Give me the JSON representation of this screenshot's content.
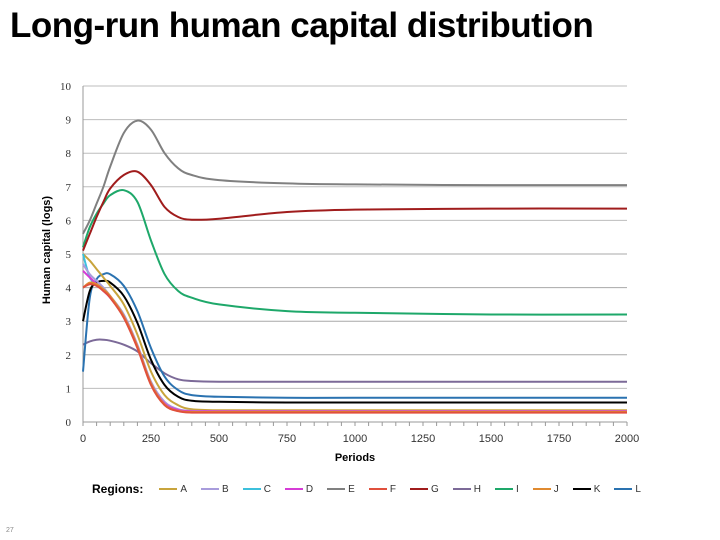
{
  "slide": {
    "title": "Long-run human capital distribution",
    "page_number": "27"
  },
  "legend": {
    "title": "Regions:",
    "items": [
      {
        "label": "A",
        "color": "#c8a43c"
      },
      {
        "label": "B",
        "color": "#a89cdc"
      },
      {
        "label": "C",
        "color": "#3cc0dc"
      },
      {
        "label": "D",
        "color": "#d63cd6"
      },
      {
        "label": "E",
        "color": "#808080"
      },
      {
        "label": "F",
        "color": "#e0503c"
      },
      {
        "label": "G",
        "color": "#a01c1c"
      },
      {
        "label": "H",
        "color": "#7c6a98"
      },
      {
        "label": "I",
        "color": "#1ea86a"
      },
      {
        "label": "J",
        "color": "#e08a30"
      },
      {
        "label": "K",
        "color": "#000000"
      },
      {
        "label": "L",
        "color": "#2a72b0"
      }
    ]
  },
  "chart_data": {
    "type": "line",
    "title": "Long-run human capital distribution",
    "xlabel": "Periods",
    "ylabel": "Human capital (logs)",
    "xlim": [
      0,
      2000
    ],
    "ylim": [
      0,
      10
    ],
    "x_ticks": [
      "0",
      "250",
      "500",
      "750",
      "1000",
      "1250",
      "1500",
      "1750",
      "2000"
    ],
    "y_ticks": [
      "0",
      "1",
      "2",
      "3",
      "4",
      "5",
      "6",
      "7",
      "8",
      "9",
      "10"
    ],
    "grid": true,
    "legend_position": "bottom",
    "x": [
      0,
      25,
      50,
      75,
      100,
      150,
      200,
      250,
      300,
      350,
      400,
      500,
      750,
      1000,
      1500,
      2000
    ],
    "series": [
      {
        "name": "A",
        "color": "#c8a43c",
        "values": [
          5.0,
          4.8,
          4.55,
          4.3,
          4.05,
          3.5,
          2.6,
          1.5,
          0.8,
          0.5,
          0.38,
          0.35,
          0.35,
          0.35,
          0.35,
          0.35
        ]
      },
      {
        "name": "B",
        "color": "#a89cdc",
        "values": [
          4.7,
          4.4,
          4.2,
          4.0,
          3.75,
          3.2,
          2.3,
          1.2,
          0.6,
          0.38,
          0.33,
          0.32,
          0.32,
          0.32,
          0.32,
          0.32
        ]
      },
      {
        "name": "C",
        "color": "#3cc0dc",
        "values": [
          5.0,
          4.3,
          4.1,
          3.95,
          3.7,
          3.15,
          2.25,
          1.15,
          0.55,
          0.35,
          0.3,
          0.3,
          0.3,
          0.3,
          0.3,
          0.3
        ]
      },
      {
        "name": "D",
        "color": "#d63cd6",
        "values": [
          4.5,
          4.3,
          4.1,
          3.9,
          3.7,
          3.15,
          2.25,
          1.15,
          0.55,
          0.36,
          0.32,
          0.32,
          0.32,
          0.32,
          0.32,
          0.32
        ]
      },
      {
        "name": "E",
        "color": "#808080",
        "values": [
          5.6,
          6.0,
          6.5,
          7.0,
          7.6,
          8.6,
          8.97,
          8.7,
          8.0,
          7.55,
          7.35,
          7.2,
          7.1,
          7.07,
          7.05,
          7.05
        ]
      },
      {
        "name": "F",
        "color": "#e0503c",
        "values": [
          4.0,
          4.1,
          4.05,
          3.9,
          3.7,
          3.1,
          2.2,
          1.1,
          0.5,
          0.32,
          0.28,
          0.28,
          0.28,
          0.28,
          0.28,
          0.28
        ]
      },
      {
        "name": "G",
        "color": "#a01c1c",
        "values": [
          5.1,
          5.6,
          6.1,
          6.55,
          6.95,
          7.35,
          7.45,
          7.05,
          6.4,
          6.1,
          6.02,
          6.05,
          6.25,
          6.32,
          6.35,
          6.35
        ]
      },
      {
        "name": "H",
        "color": "#7c6a98",
        "values": [
          2.3,
          2.4,
          2.45,
          2.45,
          2.42,
          2.3,
          2.1,
          1.75,
          1.45,
          1.27,
          1.22,
          1.2,
          1.2,
          1.2,
          1.2,
          1.2
        ]
      },
      {
        "name": "I",
        "color": "#1ea86a",
        "values": [
          5.2,
          5.8,
          6.2,
          6.5,
          6.75,
          6.9,
          6.55,
          5.4,
          4.4,
          3.9,
          3.7,
          3.5,
          3.3,
          3.25,
          3.2,
          3.2
        ]
      },
      {
        "name": "J",
        "color": "#e08a30",
        "values": [
          4.0,
          4.15,
          4.1,
          3.95,
          3.75,
          3.15,
          2.25,
          1.15,
          0.52,
          0.33,
          0.3,
          0.3,
          0.3,
          0.3,
          0.3,
          0.3
        ]
      },
      {
        "name": "K",
        "color": "#000000",
        "values": [
          3.0,
          3.9,
          4.15,
          4.2,
          4.15,
          3.75,
          2.95,
          1.85,
          1.1,
          0.75,
          0.63,
          0.6,
          0.58,
          0.58,
          0.58,
          0.58
        ]
      },
      {
        "name": "L",
        "color": "#2a72b0",
        "values": [
          1.5,
          3.7,
          4.25,
          4.4,
          4.4,
          4.05,
          3.3,
          2.2,
          1.35,
          0.95,
          0.8,
          0.75,
          0.72,
          0.72,
          0.72,
          0.72
        ]
      }
    ]
  }
}
